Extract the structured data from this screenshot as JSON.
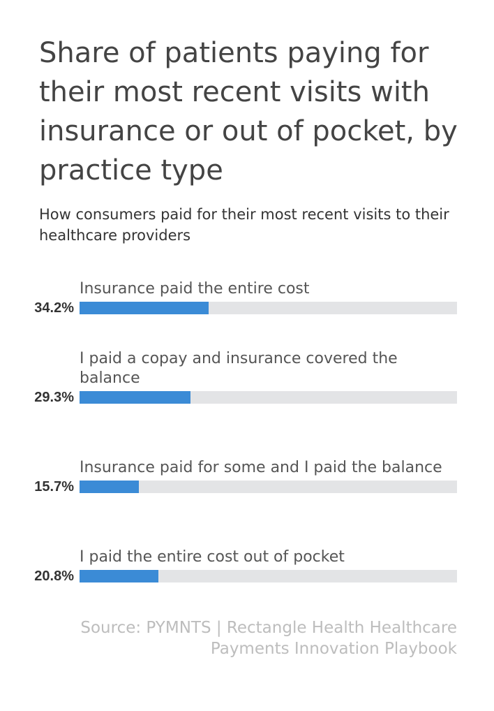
{
  "chart_data": {
    "type": "bar",
    "title": "Share of patients paying for their most recent visits with insurance or out of pocket, by practice type",
    "subtitle": "How consumers paid for their most recent visits to their healthcare providers",
    "categories": [
      "Insurance paid the entire cost",
      "I paid a copay and insurance covered the balance",
      "Insurance paid for some and I paid the balance",
      "I paid the entire cost out of pocket"
    ],
    "values": [
      34.2,
      29.3,
      15.7,
      20.8
    ],
    "value_labels": [
      "34.2%",
      "29.3%",
      "15.7%",
      "20.8%"
    ],
    "color": "#3b8bd6",
    "xlim": [
      0,
      100
    ],
    "source": "Source: PYMNTS | Rectangle Health Healthcare Payments Innovation Playbook"
  }
}
